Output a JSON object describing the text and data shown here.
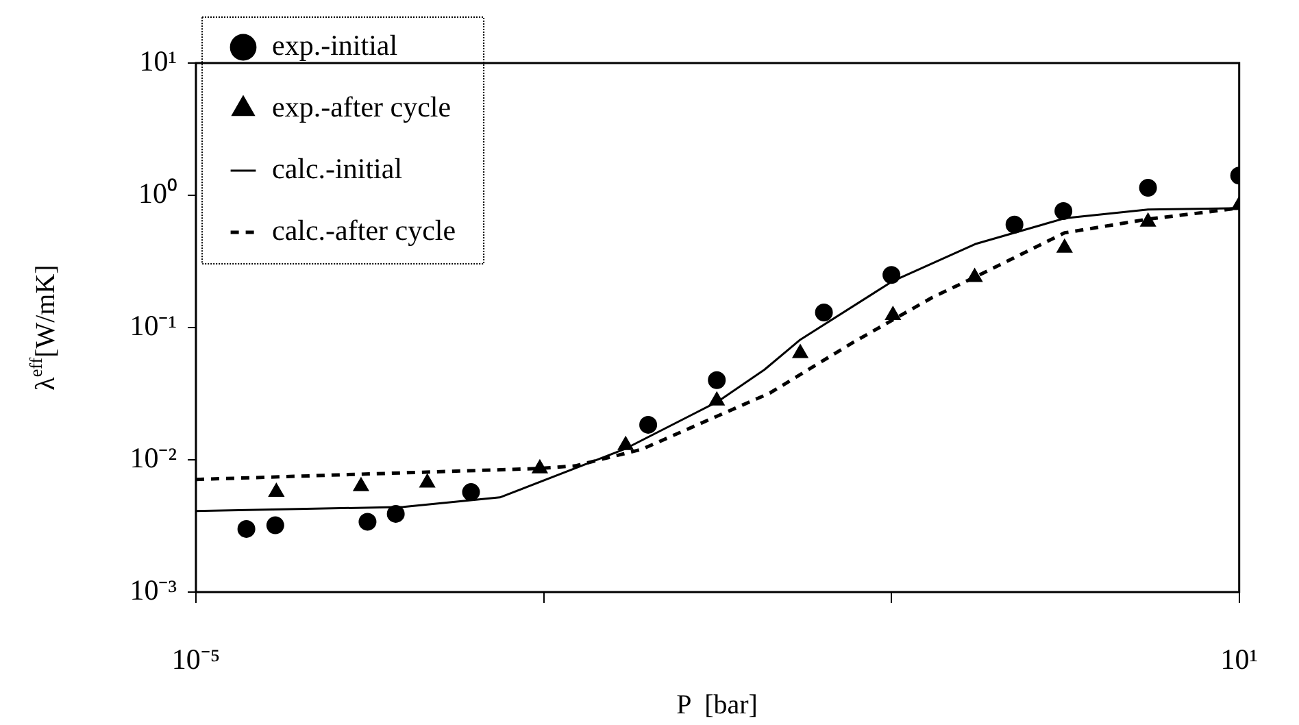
{
  "chart_data": {
    "type": "scatter",
    "xlabel": "P  [bar]",
    "ylabel": "λ$^{eff}$[W/mK]",
    "log": "xy",
    "grid": false,
    "legend": "top left",
    "xlim": [
      1e-05,
      10
    ],
    "ylim": [
      0.001,
      10
    ],
    "xticks": [
      {
        "value": 1e-05,
        "label": "10⁻⁵"
      },
      {
        "value": 0.001,
        "label": null
      },
      {
        "value": 0.1,
        "label": null
      },
      {
        "value": 10,
        "label": "10¹"
      }
    ],
    "yticks": [
      {
        "value": 0.001,
        "label": "10⁻³"
      },
      {
        "value": 0.01,
        "label": "10⁻²"
      },
      {
        "value": 0.1,
        "label": "10⁻¹"
      },
      {
        "value": 1,
        "label": "10⁰"
      },
      {
        "value": 10,
        "label": "10¹"
      }
    ],
    "series": [
      {
        "name": "exp.-initial",
        "type": "scatter",
        "marker": "circle",
        "color": "#000000",
        "x": [
          1.95e-05,
          2.86e-05,
          9.7e-05,
          0.000141,
          0.000382,
          0.00399,
          0.0099,
          0.0409,
          0.1,
          0.51,
          0.975,
          2.99,
          10
        ],
        "values": [
          0.003,
          0.0032,
          0.0034,
          0.0039,
          0.0057,
          0.0184,
          0.04,
          0.13,
          0.25,
          0.6,
          0.76,
          1.14,
          1.41
        ]
      },
      {
        "name": "exp.-after cycle",
        "type": "scatter",
        "marker": "triangle",
        "color": "#000000",
        "x": [
          2.9e-05,
          8.9e-05,
          0.000214,
          0.00095,
          0.00296,
          0.0099,
          0.0299,
          0.102,
          0.301,
          0.99,
          2.99,
          10
        ],
        "values": [
          0.0057,
          0.0063,
          0.0067,
          0.0086,
          0.0129,
          0.028,
          0.064,
          0.124,
          0.24,
          0.4,
          0.63,
          0.84
        ]
      },
      {
        "name": "calc.-initial",
        "type": "line",
        "marker": "none",
        "line_style": "solid",
        "color": "#000000",
        "x": [
          1e-05,
          0.000156,
          0.00056,
          0.0029,
          0.01,
          0.0186,
          0.0299,
          0.102,
          0.307,
          0.99,
          2.99,
          10
        ],
        "values": [
          0.0041,
          0.0044,
          0.0052,
          0.012,
          0.0275,
          0.048,
          0.081,
          0.225,
          0.43,
          0.67,
          0.78,
          0.8
        ]
      },
      {
        "name": "calc.-after cycle",
        "type": "line",
        "marker": "none",
        "line_style": "dashed",
        "color": "#000000",
        "x": [
          1e-05,
          0.00095,
          0.00152,
          0.00366,
          0.02,
          0.06,
          0.172,
          0.301,
          0.99,
          2.99,
          10
        ],
        "values": [
          0.0071,
          0.0086,
          0.009,
          0.012,
          0.032,
          0.077,
          0.169,
          0.24,
          0.52,
          0.66,
          0.8
        ]
      }
    ]
  }
}
